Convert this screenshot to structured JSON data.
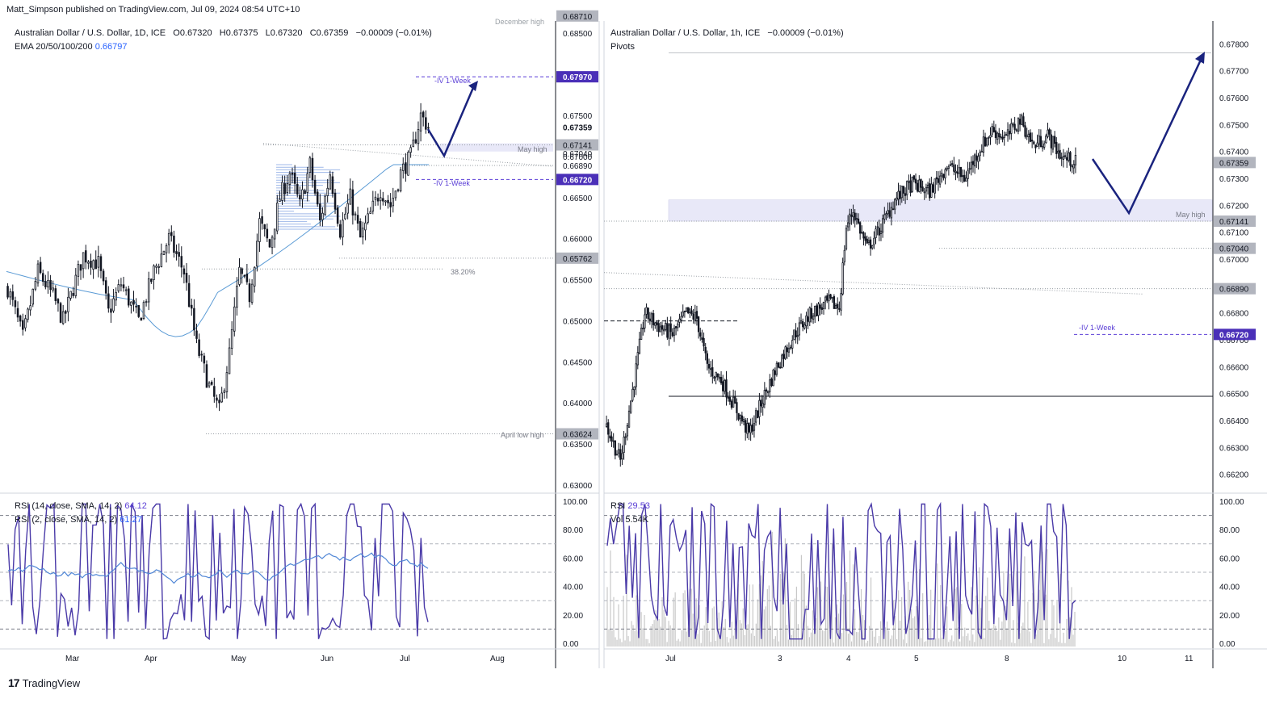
{
  "publisher": "Matt_Simpson published on TradingView.com, Jul 09, 2024 08:54 UTC+10",
  "brand": "TradingView",
  "colors": {
    "candle": "#131722",
    "ema": "#5b9bd5",
    "rsi_main": "#4a3aa8",
    "rsi_ma": "#4f86d6",
    "accent_purple": "#5b3fd6",
    "arrow": "#1a237e",
    "zone": "#e8e8f8",
    "volume": "#c8c8c8"
  },
  "left": {
    "title": "Australian Dollar / U.S. Dollar, 1D, ICE",
    "ohlc": {
      "o_lbl": "O",
      "o": "0.67320",
      "h_lbl": "H",
      "h": "0.67375",
      "l_lbl": "L",
      "l": "0.67320",
      "c_lbl": "C",
      "c": "0.67359",
      "chg": "−0.00009 (−0.01%)"
    },
    "ema_label": "EMA 20/50/100/200",
    "ema_value": "0.66797",
    "rsi14_label": "RSI (14, close, SMA, 14, 2)",
    "rsi14_value": "64.12",
    "rsi2_label": "RSI (2, close, SMA, 14, 2)",
    "rsi2_value": "61.27",
    "annotations": {
      "december_high": "December high",
      "iv_up": "-IV 1-Week",
      "may_high": "May high",
      "iv_down": "-IV 1-Week",
      "fib": "38.20%",
      "april_low": "April low high"
    },
    "price_axis": [
      "0.68500",
      "0.68000",
      "0.67500",
      "0.67000",
      "0.66500",
      "0.66000",
      "0.65500",
      "0.65000",
      "0.64500",
      "0.64000",
      "0.63500",
      "0.63000"
    ],
    "price_axis_extra": "0.67359",
    "price_tags": [
      {
        "text": "0.68710",
        "style": "gray",
        "price": 0.6871
      },
      {
        "text": "0.67970",
        "style": "purple",
        "price": 0.6797
      },
      {
        "text": "0.67141",
        "style": "gray",
        "price": 0.67141
      },
      {
        "text": "0.67040",
        "style": "plain",
        "price": 0.6704
      },
      {
        "text": "0.66890",
        "style": "plain",
        "price": 0.6689
      },
      {
        "text": "0.66720",
        "style": "purple",
        "price": 0.6672
      },
      {
        "text": "0.65762",
        "style": "gray",
        "price": 0.65762
      },
      {
        "text": "0.63624",
        "style": "gray",
        "price": 0.63624
      }
    ],
    "rsi_axis": [
      "100.00",
      "80.00",
      "60.00",
      "40.00",
      "20.00",
      "0.00"
    ],
    "time_axis": [
      "Mar",
      "Apr",
      "May",
      "Jun",
      "Jul",
      "Aug"
    ]
  },
  "right": {
    "title": "Australian Dollar / U.S. Dollar, 1h, ICE",
    "chg": "−0.00009 (−0.01%)",
    "pivots_label": "Pivots",
    "annotations": {
      "may_high": "May high",
      "iv_down": "-IV 1-Week"
    },
    "rsi_label": "RSI",
    "rsi_value": "29.53",
    "vol_label": "Vol",
    "vol_value": "5.54K",
    "price_axis": [
      "0.67800",
      "0.67700",
      "0.67600",
      "0.67500",
      "0.67400",
      "0.67300",
      "0.67200",
      "0.67100",
      "0.67000",
      "0.66800",
      "0.66700",
      "0.66600",
      "0.66500",
      "0.66400",
      "0.66300",
      "0.66200"
    ],
    "price_tags": [
      {
        "text": "0.67359",
        "style": "gray",
        "price": 0.67359
      },
      {
        "text": "0.67141",
        "style": "gray",
        "price": 0.67141
      },
      {
        "text": "0.67040",
        "style": "gray",
        "price": 0.6704
      },
      {
        "text": "0.66890",
        "style": "gray",
        "price": 0.6689
      },
      {
        "text": "0.66720",
        "style": "purple",
        "price": 0.6672
      }
    ],
    "rsi_axis": [
      "100.00",
      "80.00",
      "60.00",
      "40.00",
      "20.00",
      "0.00"
    ],
    "time_axis": [
      "Jul",
      "3",
      "4",
      "5",
      "8",
      "10",
      "11"
    ]
  },
  "chart_data": [
    {
      "type": "candlestick",
      "title": "Australian Dollar / U.S. Dollar, 1D, ICE",
      "ylim": [
        0.629,
        0.688
      ],
      "x": [
        "Mar",
        "Apr",
        "May",
        "Jun",
        "Jul",
        "Aug"
      ],
      "path_points_close": [
        {
          "i": 0,
          "c": 0.654
        },
        {
          "i": 6,
          "c": 0.648
        },
        {
          "i": 12,
          "c": 0.656
        },
        {
          "i": 18,
          "c": 0.653
        },
        {
          "i": 22,
          "c": 0.65
        },
        {
          "i": 26,
          "c": 0.654
        },
        {
          "i": 30,
          "c": 0.658
        },
        {
          "i": 36,
          "c": 0.657
        },
        {
          "i": 40,
          "c": 0.651
        },
        {
          "i": 45,
          "c": 0.6545
        },
        {
          "i": 52,
          "c": 0.65
        },
        {
          "i": 58,
          "c": 0.656
        },
        {
          "i": 64,
          "c": 0.66
        },
        {
          "i": 70,
          "c": 0.656
        },
        {
          "i": 75,
          "c": 0.647
        },
        {
          "i": 80,
          "c": 0.642
        },
        {
          "i": 84,
          "c": 0.639
        },
        {
          "i": 88,
          "c": 0.646
        },
        {
          "i": 92,
          "c": 0.656
        },
        {
          "i": 96,
          "c": 0.653
        },
        {
          "i": 100,
          "c": 0.662
        },
        {
          "i": 104,
          "c": 0.659
        },
        {
          "i": 108,
          "c": 0.665
        },
        {
          "i": 112,
          "c": 0.668
        },
        {
          "i": 116,
          "c": 0.664
        },
        {
          "i": 120,
          "c": 0.669
        },
        {
          "i": 124,
          "c": 0.662
        },
        {
          "i": 128,
          "c": 0.668
        },
        {
          "i": 132,
          "c": 0.661
        },
        {
          "i": 136,
          "c": 0.665
        },
        {
          "i": 140,
          "c": 0.66
        },
        {
          "i": 144,
          "c": 0.663
        },
        {
          "i": 148,
          "c": 0.666
        },
        {
          "i": 152,
          "c": 0.664
        },
        {
          "i": 156,
          "c": 0.668
        },
        {
          "i": 160,
          "c": 0.67
        },
        {
          "i": 164,
          "c": 0.675
        },
        {
          "i": 167,
          "c": 0.6736
        }
      ],
      "annotations": [
        "December high",
        "-IV 1-Week",
        "May high",
        "-IV 1-Week",
        "38.20%",
        "April low high"
      ],
      "ema": {
        "label": "EMA 20/50/100/200",
        "last": 0.66797
      },
      "rsi14": {
        "label": "RSI (14, close, SMA, 14, 2)",
        "last": 64.12
      },
      "rsi2": {
        "label": "RSI (2, close, SMA, 14, 2)",
        "last": 61.27
      }
    },
    {
      "type": "candlestick",
      "title": "Australian Dollar / U.S. Dollar, 1h, ICE",
      "ylim": [
        0.6616,
        0.6787
      ],
      "x": [
        "Jul",
        "3",
        "4",
        "5",
        "8",
        "10",
        "11"
      ],
      "path_points_close": [
        {
          "i": 0,
          "c": 0.6638
        },
        {
          "i": 8,
          "c": 0.6625
        },
        {
          "i": 16,
          "c": 0.6655
        },
        {
          "i": 22,
          "c": 0.668
        },
        {
          "i": 30,
          "c": 0.6675
        },
        {
          "i": 38,
          "c": 0.6672
        },
        {
          "i": 46,
          "c": 0.668
        },
        {
          "i": 52,
          "c": 0.6678
        },
        {
          "i": 58,
          "c": 0.666
        },
        {
          "i": 66,
          "c": 0.6655
        },
        {
          "i": 74,
          "c": 0.6645
        },
        {
          "i": 82,
          "c": 0.6635
        },
        {
          "i": 90,
          "c": 0.6648
        },
        {
          "i": 98,
          "c": 0.666
        },
        {
          "i": 108,
          "c": 0.6672
        },
        {
          "i": 118,
          "c": 0.668
        },
        {
          "i": 128,
          "c": 0.6684
        },
        {
          "i": 134,
          "c": 0.6682
        },
        {
          "i": 138,
          "c": 0.6712
        },
        {
          "i": 142,
          "c": 0.6718
        },
        {
          "i": 150,
          "c": 0.6704
        },
        {
          "i": 158,
          "c": 0.6712
        },
        {
          "i": 166,
          "c": 0.6722
        },
        {
          "i": 176,
          "c": 0.6728
        },
        {
          "i": 186,
          "c": 0.6725
        },
        {
          "i": 196,
          "c": 0.6735
        },
        {
          "i": 206,
          "c": 0.673
        },
        {
          "i": 214,
          "c": 0.674
        },
        {
          "i": 222,
          "c": 0.6748
        },
        {
          "i": 230,
          "c": 0.6745
        },
        {
          "i": 238,
          "c": 0.6752
        },
        {
          "i": 246,
          "c": 0.6742
        },
        {
          "i": 254,
          "c": 0.6746
        },
        {
          "i": 262,
          "c": 0.6738
        },
        {
          "i": 270,
          "c": 0.6736
        }
      ],
      "annotations": [
        "May high",
        "-IV 1-Week"
      ],
      "rsi": {
        "label": "RSI",
        "last": 29.53
      },
      "volume": {
        "label": "Vol",
        "last": "5.54K"
      }
    }
  ]
}
